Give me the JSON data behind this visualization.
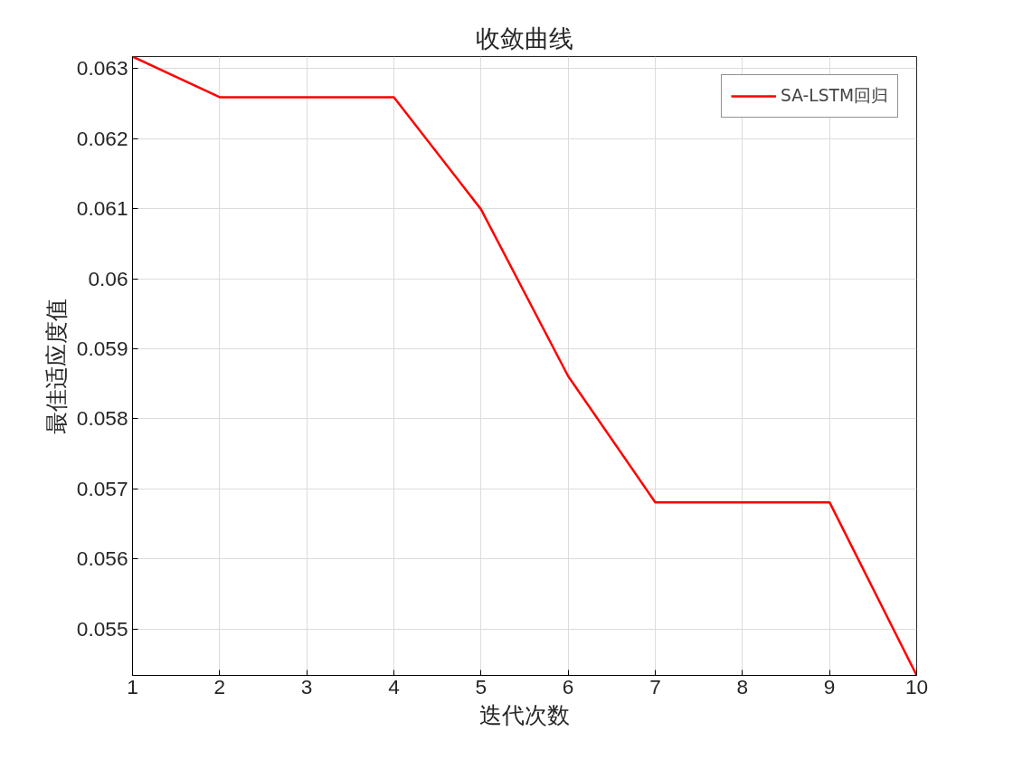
{
  "chart_data": {
    "type": "line",
    "title": "收敛曲线",
    "xlabel": "迭代次数",
    "ylabel": "最佳适应度值",
    "x": [
      1,
      2,
      3,
      4,
      5,
      6,
      7,
      8,
      9,
      10
    ],
    "series": [
      {
        "name": "SA-LSTM回归",
        "color": "#ff0000",
        "values": [
          0.06317,
          0.06259,
          0.06259,
          0.06259,
          0.06099,
          0.05861,
          0.05681,
          0.05681,
          0.05681,
          0.05434
        ]
      }
    ],
    "xlim": [
      1,
      10
    ],
    "xticks": [
      1,
      2,
      3,
      4,
      5,
      6,
      7,
      8,
      9,
      10
    ],
    "ylim": [
      0.05434,
      0.06317
    ],
    "yticks": [
      {
        "value": 0.055,
        "label": "0.055"
      },
      {
        "value": 0.056,
        "label": "0.056"
      },
      {
        "value": 0.057,
        "label": "0.057"
      },
      {
        "value": 0.058,
        "label": "0.058"
      },
      {
        "value": 0.059,
        "label": "0.059"
      },
      {
        "value": 0.06,
        "label": "0.06"
      },
      {
        "value": 0.061,
        "label": "0.061"
      },
      {
        "value": 0.062,
        "label": "0.062"
      },
      {
        "value": 0.063,
        "label": "0.063"
      }
    ],
    "grid": true,
    "legend": "top right",
    "line_style": "solid",
    "marker": "none"
  }
}
